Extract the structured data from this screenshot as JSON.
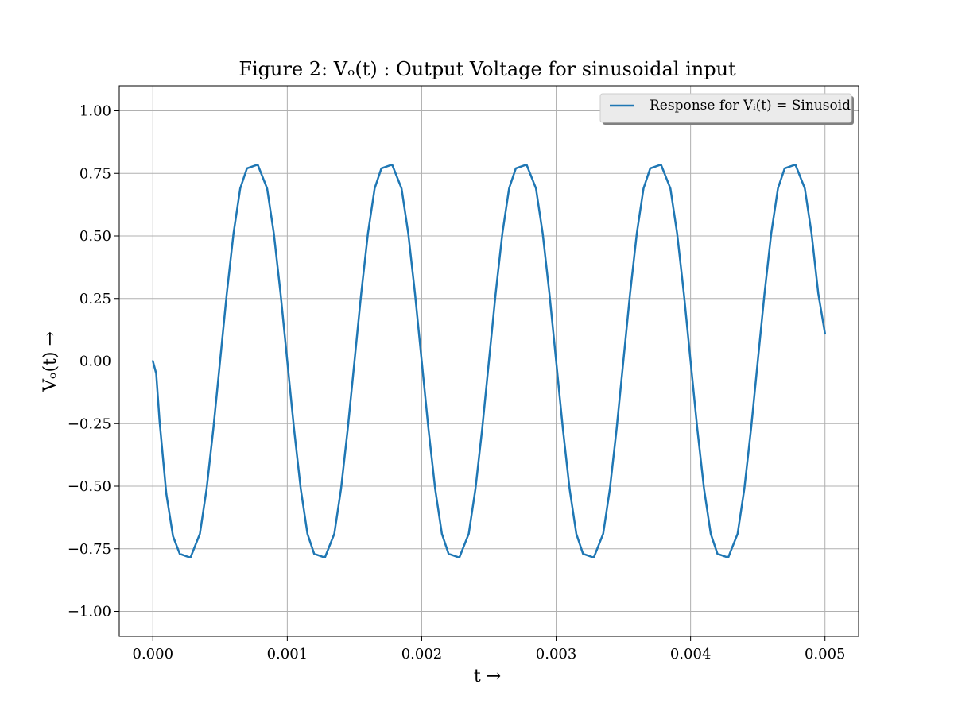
{
  "chart_data": {
    "type": "line",
    "title": "Figure 2: Vₒ(t) : Output Voltage for sinusoidal input",
    "xlabel": "t →",
    "ylabel": "Vₒ(t) →",
    "xlim": [
      -0.00025,
      0.00525
    ],
    "ylim": [
      -1.1,
      1.1
    ],
    "x_ticks": [
      0.0,
      0.001,
      0.002,
      0.003,
      0.004,
      0.005
    ],
    "x_tick_labels": [
      "0.000",
      "0.001",
      "0.002",
      "0.003",
      "0.004",
      "0.005"
    ],
    "y_ticks": [
      1.0,
      0.75,
      0.5,
      0.25,
      0.0,
      -0.25,
      -0.5,
      -0.75,
      -1.0
    ],
    "y_tick_labels": [
      "1.00",
      "0.75",
      "0.50",
      "0.25",
      "0.00",
      "−0.25",
      "−0.50",
      "−0.75",
      "−1.00"
    ],
    "grid": true,
    "legend_position": "top-right",
    "series": [
      {
        "name": "Response for Vᵢ(t) = Sinusoid",
        "color": "#1f77b4",
        "x": [
          0.0,
          2.5e-05,
          5e-05,
          0.0001,
          0.00015,
          0.0002,
          0.00025,
          0.00028,
          0.00035,
          0.0004,
          0.00045,
          0.0005,
          0.00055,
          0.0006,
          0.00065,
          0.0007,
          0.00078,
          0.00085,
          0.0009,
          0.00095,
          0.001,
          0.00105,
          0.0011,
          0.00115,
          0.0012,
          0.00128,
          0.00135,
          0.0014,
          0.00145,
          0.0015,
          0.00155,
          0.0016,
          0.00165,
          0.0017,
          0.00178,
          0.00185,
          0.0019,
          0.00195,
          0.002,
          0.00205,
          0.0021,
          0.00215,
          0.0022,
          0.00228,
          0.00235,
          0.0024,
          0.00245,
          0.0025,
          0.00255,
          0.0026,
          0.00265,
          0.0027,
          0.00278,
          0.00285,
          0.0029,
          0.00295,
          0.003,
          0.00305,
          0.0031,
          0.00315,
          0.0032,
          0.00328,
          0.00335,
          0.0034,
          0.00345,
          0.0035,
          0.00355,
          0.0036,
          0.00365,
          0.0037,
          0.00378,
          0.00385,
          0.0039,
          0.00395,
          0.004,
          0.00405,
          0.0041,
          0.00415,
          0.0042,
          0.00428,
          0.00435,
          0.0044,
          0.00445,
          0.0045,
          0.00455,
          0.0046,
          0.00465,
          0.0047,
          0.00478,
          0.00485,
          0.0049,
          0.00495,
          0.005
        ],
        "y": [
          0.0,
          -0.05,
          -0.24,
          -0.53,
          -0.7,
          -0.77,
          -0.78,
          -0.785,
          -0.69,
          -0.51,
          -0.27,
          0.0,
          0.27,
          0.51,
          0.69,
          0.77,
          0.785,
          0.69,
          0.51,
          0.27,
          0.0,
          -0.27,
          -0.51,
          -0.69,
          -0.77,
          -0.785,
          -0.69,
          -0.51,
          -0.27,
          0.0,
          0.27,
          0.51,
          0.69,
          0.77,
          0.785,
          0.69,
          0.51,
          0.27,
          0.0,
          -0.27,
          -0.51,
          -0.69,
          -0.77,
          -0.785,
          -0.69,
          -0.51,
          -0.27,
          0.0,
          0.27,
          0.51,
          0.69,
          0.77,
          0.785,
          0.69,
          0.51,
          0.27,
          0.0,
          -0.27,
          -0.51,
          -0.69,
          -0.77,
          -0.785,
          -0.69,
          -0.51,
          -0.27,
          0.0,
          0.27,
          0.51,
          0.69,
          0.77,
          0.785,
          0.69,
          0.51,
          0.27,
          0.0,
          -0.27,
          -0.51,
          -0.69,
          -0.77,
          -0.785,
          -0.69,
          -0.51,
          -0.27,
          0.0,
          0.27,
          0.51,
          0.69,
          0.77,
          0.785,
          0.69,
          0.51,
          0.27,
          0.11
        ]
      }
    ]
  }
}
